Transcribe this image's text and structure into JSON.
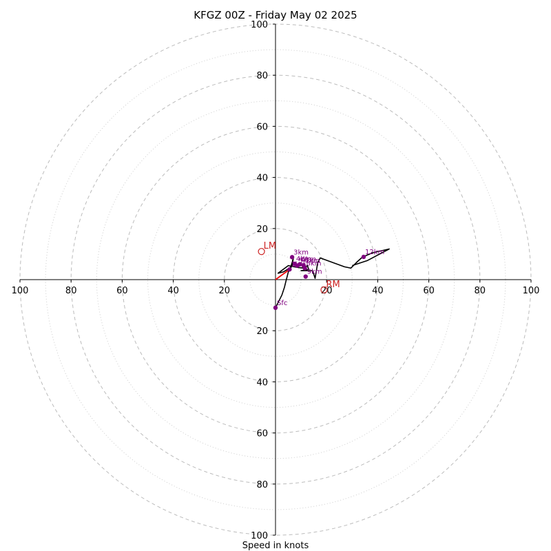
{
  "chart_data": {
    "type": "hodograph",
    "title": "KFGZ 00Z - Friday May 02 2025",
    "xlabel": "Speed in knots",
    "xlim": [
      -100,
      100
    ],
    "ylim": [
      -100,
      100
    ],
    "ring_major": [
      20,
      40,
      60,
      80,
      100
    ],
    "ring_minor": [
      10,
      30,
      50,
      70,
      90
    ],
    "x_ticks": [
      {
        "value": -100,
        "label": "100"
      },
      {
        "value": -80,
        "label": "80"
      },
      {
        "value": -60,
        "label": "60"
      },
      {
        "value": -40,
        "label": "40"
      },
      {
        "value": -20,
        "label": "20"
      },
      {
        "value": 20,
        "label": "20"
      },
      {
        "value": 40,
        "label": "40"
      },
      {
        "value": 60,
        "label": "60"
      },
      {
        "value": 80,
        "label": "80"
      },
      {
        "value": 100,
        "label": "100"
      }
    ],
    "y_ticks": [
      {
        "value": 100,
        "label": "100"
      },
      {
        "value": 80,
        "label": "80"
      },
      {
        "value": 60,
        "label": "60"
      },
      {
        "value": 40,
        "label": "40"
      },
      {
        "value": 20,
        "label": "20"
      },
      {
        "value": -20,
        "label": "20"
      },
      {
        "value": -40,
        "label": "40"
      },
      {
        "value": -60,
        "label": "60"
      },
      {
        "value": -80,
        "label": "80"
      },
      {
        "value": -100,
        "label": "100"
      }
    ],
    "hodograph_trace": [
      [
        0.0,
        -11.0
      ],
      [
        2.5,
        -6.0
      ],
      [
        3.5,
        -3.0
      ],
      [
        4.0,
        -1.0
      ],
      [
        5.0,
        3.0
      ],
      [
        6.5,
        5.5
      ],
      [
        7.0,
        8.5
      ],
      [
        6.0,
        5.0
      ],
      [
        5.5,
        4.5
      ],
      [
        3.0,
        3.0
      ],
      [
        1.0,
        2.5
      ],
      [
        5.0,
        5.5
      ],
      [
        8.5,
        4.8
      ],
      [
        11.0,
        4.5
      ],
      [
        12.5,
        5.5
      ],
      [
        13.0,
        4.0
      ],
      [
        10.0,
        3.5
      ],
      [
        14.5,
        3.5
      ],
      [
        15.5,
        0.5
      ],
      [
        16.5,
        6.5
      ],
      [
        17.5,
        8.5
      ],
      [
        27.0,
        5.0
      ],
      [
        29.5,
        4.5
      ],
      [
        32.0,
        7.0
      ],
      [
        34.0,
        8.8
      ],
      [
        38.0,
        10.5
      ],
      [
        44.5,
        12.0
      ],
      [
        36.0,
        7.5
      ],
      [
        30.0,
        5.5
      ]
    ],
    "storm_motion_vector": {
      "from": [
        0.0,
        0.0
      ],
      "to": [
        5.5,
        4.0
      ]
    },
    "height_markers": [
      {
        "label": "Sfc",
        "x": 0.0,
        "y": -11.0
      },
      {
        "label": "1km",
        "x": 5.5,
        "y": 4.0
      },
      {
        "label": "3km",
        "x": 6.5,
        "y": 8.8
      },
      {
        "label": "4km",
        "x": 7.5,
        "y": 6.2
      },
      {
        "label": "5km",
        "x": 8.5,
        "y": 5.5
      },
      {
        "label": "6km",
        "x": 9.5,
        "y": 6.0
      },
      {
        "label": "7km",
        "x": 11.0,
        "y": 5.5
      },
      {
        "label": "8km",
        "x": 11.5,
        "y": 4.5
      },
      {
        "label": "9km",
        "x": 11.8,
        "y": 1.2
      },
      {
        "label": "12km",
        "x": 34.5,
        "y": 8.9
      }
    ],
    "storm_motions": [
      {
        "label": "LM",
        "x": -5.5,
        "y": 11.0
      },
      {
        "label": "RM",
        "x": 19.0,
        "y": -4.0
      }
    ],
    "colors": {
      "trace": "#000000",
      "vector": "#ee1111",
      "markers": "#800080",
      "storm_motion": "#cc2222",
      "grid": "#bbbbbb"
    }
  }
}
